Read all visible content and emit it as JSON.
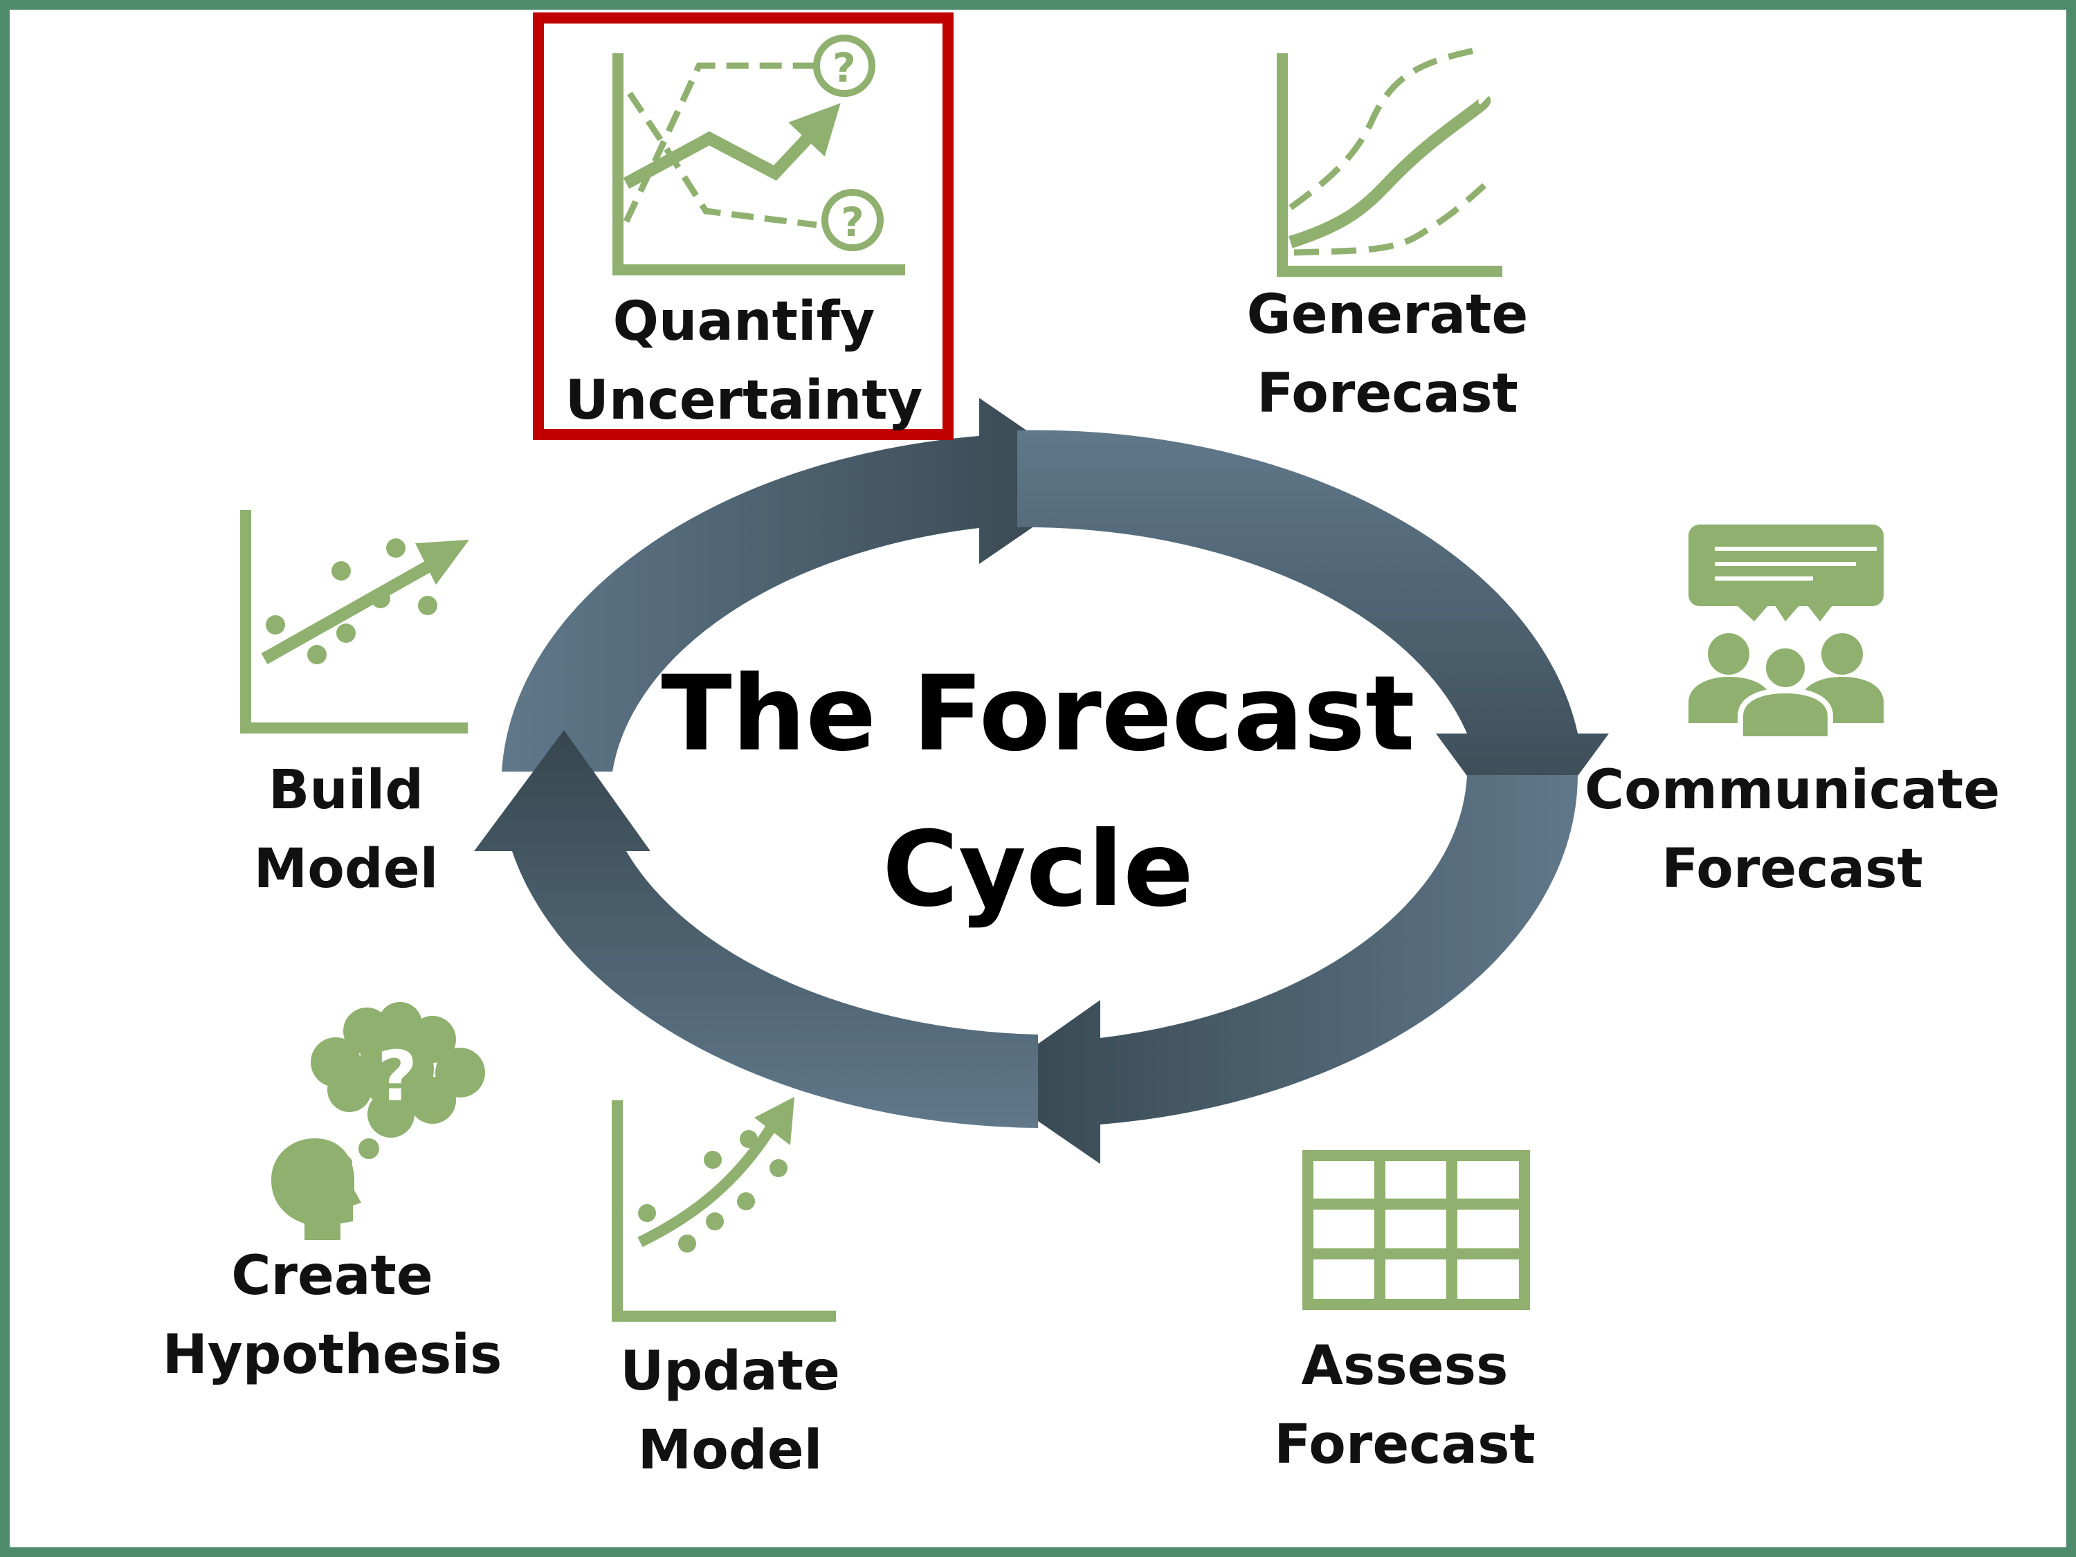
{
  "title": {
    "line1": "The Forecast",
    "line2": "Cycle"
  },
  "colors": {
    "border": "#4e8b6a",
    "icon_green": "#8fb06e",
    "highlight": "#c00000",
    "arrow_light": "#5e7380",
    "arrow_dark": "#36464f"
  },
  "stages": [
    {
      "id": "quantify-uncertainty",
      "line1": "Quantify",
      "line2": "Uncertainty",
      "icon": "uncertainty-chart-icon",
      "highlighted": true
    },
    {
      "id": "generate-forecast",
      "line1": "Generate",
      "line2": "Forecast",
      "icon": "forecast-curves-icon",
      "highlighted": false
    },
    {
      "id": "communicate-forecast",
      "line1": "Communicate",
      "line2": "Forecast",
      "icon": "people-speech-icon",
      "highlighted": false
    },
    {
      "id": "assess-forecast",
      "line1": "Assess",
      "line2": "Forecast",
      "icon": "table-grid-icon",
      "highlighted": false
    },
    {
      "id": "update-model",
      "line1": "Update",
      "line2": "Model",
      "icon": "curved-trend-chart-icon",
      "highlighted": false
    },
    {
      "id": "create-hypothesis",
      "line1": "Create",
      "line2": "Hypothesis",
      "icon": "thinking-head-icon",
      "highlighted": false
    },
    {
      "id": "build-model",
      "line1": "Build",
      "line2": "Model",
      "icon": "scatter-trend-chart-icon",
      "highlighted": false
    }
  ]
}
